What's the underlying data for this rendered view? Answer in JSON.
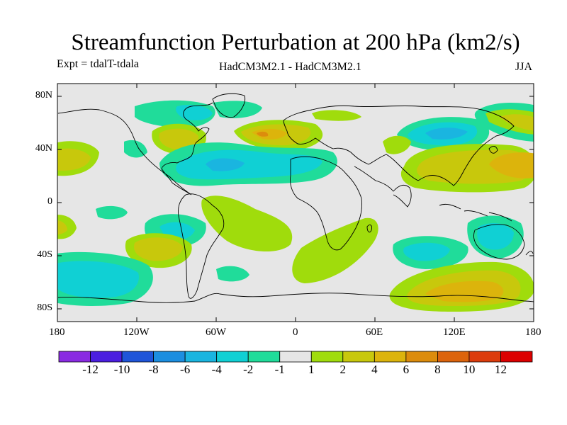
{
  "title": "Streamfunction Perturbation at 200 hPa (km2/s)",
  "experiment": "Expt = tdalT-tdala",
  "models": "HadCM3M2.1 - HadCM3M2.1",
  "season": "JJA",
  "lat_labels": [
    "80N",
    "40N",
    "0",
    "40S",
    "80S"
  ],
  "lon_labels": [
    "180",
    "120W",
    "60W",
    "0",
    "60E",
    "120E",
    "180"
  ],
  "colorbar": {
    "colors": [
      "#8a2be2",
      "#4b1ee0",
      "#1f55d9",
      "#1c8ee0",
      "#1ab5e0",
      "#10d0d4",
      "#20dc9a",
      "#e6e6e6",
      "#a0dc0c",
      "#c8c80c",
      "#dcb40c",
      "#dc8c0c",
      "#dc640c",
      "#dc3c0c",
      "#dc0000"
    ],
    "labels": [
      "-12",
      "-10",
      "-8",
      "-6",
      "-4",
      "-2",
      "-1",
      "1",
      "2",
      "4",
      "6",
      "8",
      "10",
      "12"
    ]
  },
  "map_data": {
    "projection": "equirectangular",
    "lon_range": [
      -180,
      180
    ],
    "lat_range": [
      -90,
      90
    ],
    "variable": "streamfunction perturbation",
    "level": "200 hPa",
    "units": "km2/s"
  }
}
